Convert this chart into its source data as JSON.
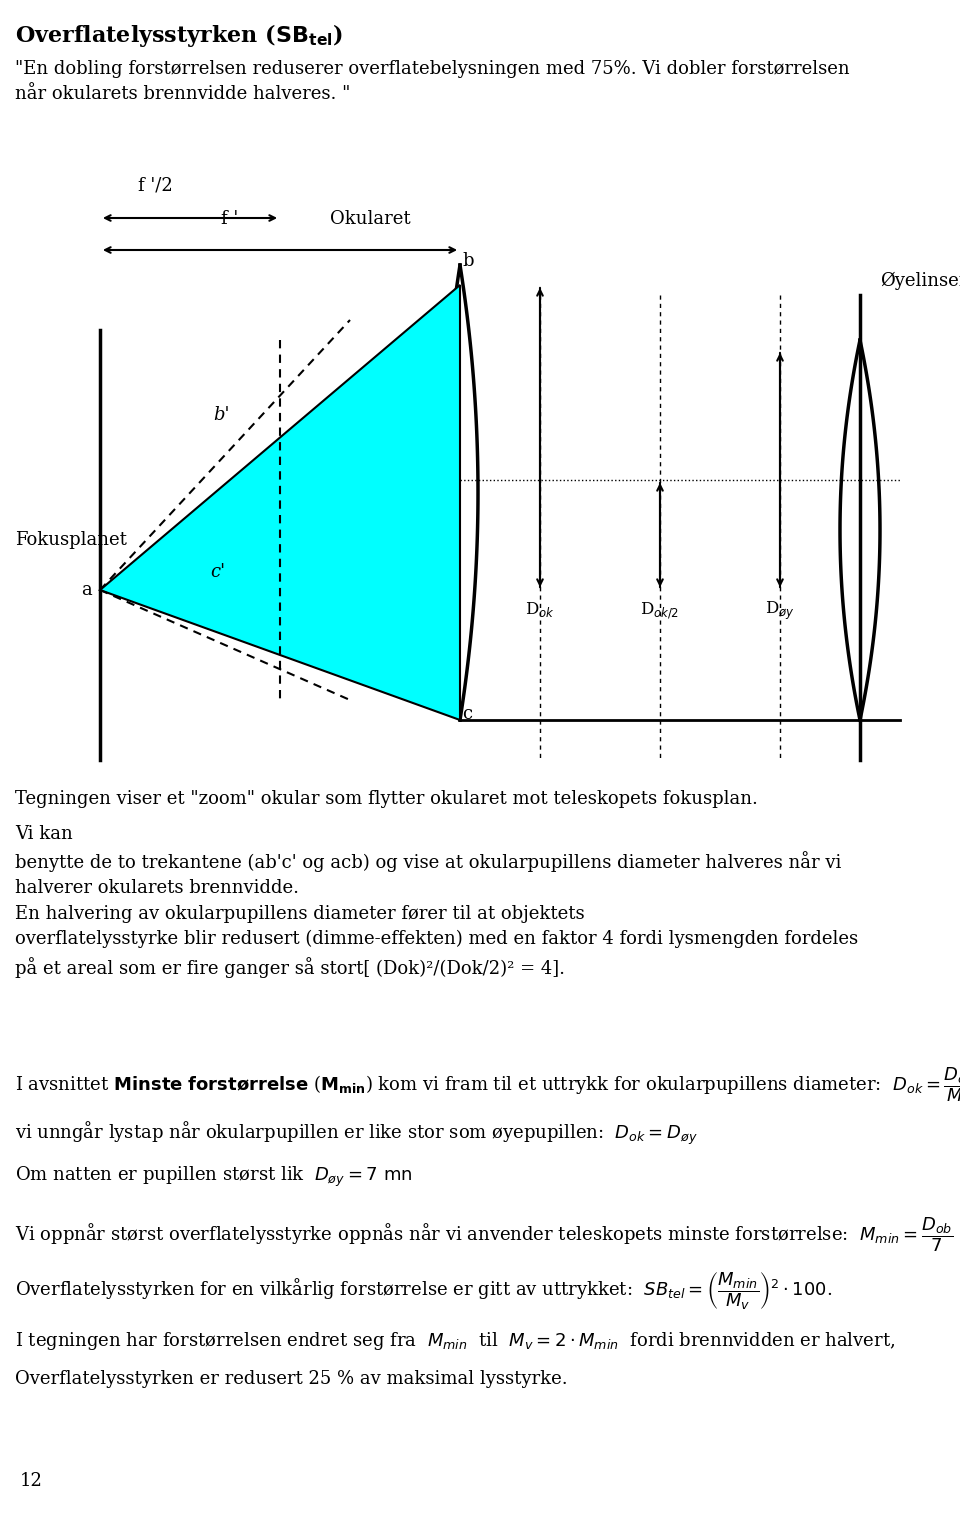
{
  "title": "Overflatelysstyrken (SB$_{tel}$)",
  "intro_text": "\"En dobling forstørrelsen reduserer overflatebelysningen med 75%. Vi dobler forstørrelsen\nnår okularets brennvidde halveres. \"",
  "diagram_note": "Tegningen viser et \"zoom\" okular som flytter okularet mot teleskopets fokusplan.",
  "body_text1": "Vi kan benytte de to trekantene (ab'c' og acb) og vise at okularpupillens diameter halveres når vi\nhalverer okularets brennvidde.",
  "body_text2": "En halvering av okularpupillens diameter fører til at objektets overflatelysstyrke blir redusert (dimme-effekten) med en faktor 4 fordi lysmengden fordeles\npå et areal som er fire ganger så stort[ (Dok)²/(Dok/2)² = 4].",
  "section_label": "I avsnittet Minste forstørrelse (M",
  "cyan_color": "#00FFFF",
  "bg_color": "#FFFFFF",
  "text_color": "#000000"
}
